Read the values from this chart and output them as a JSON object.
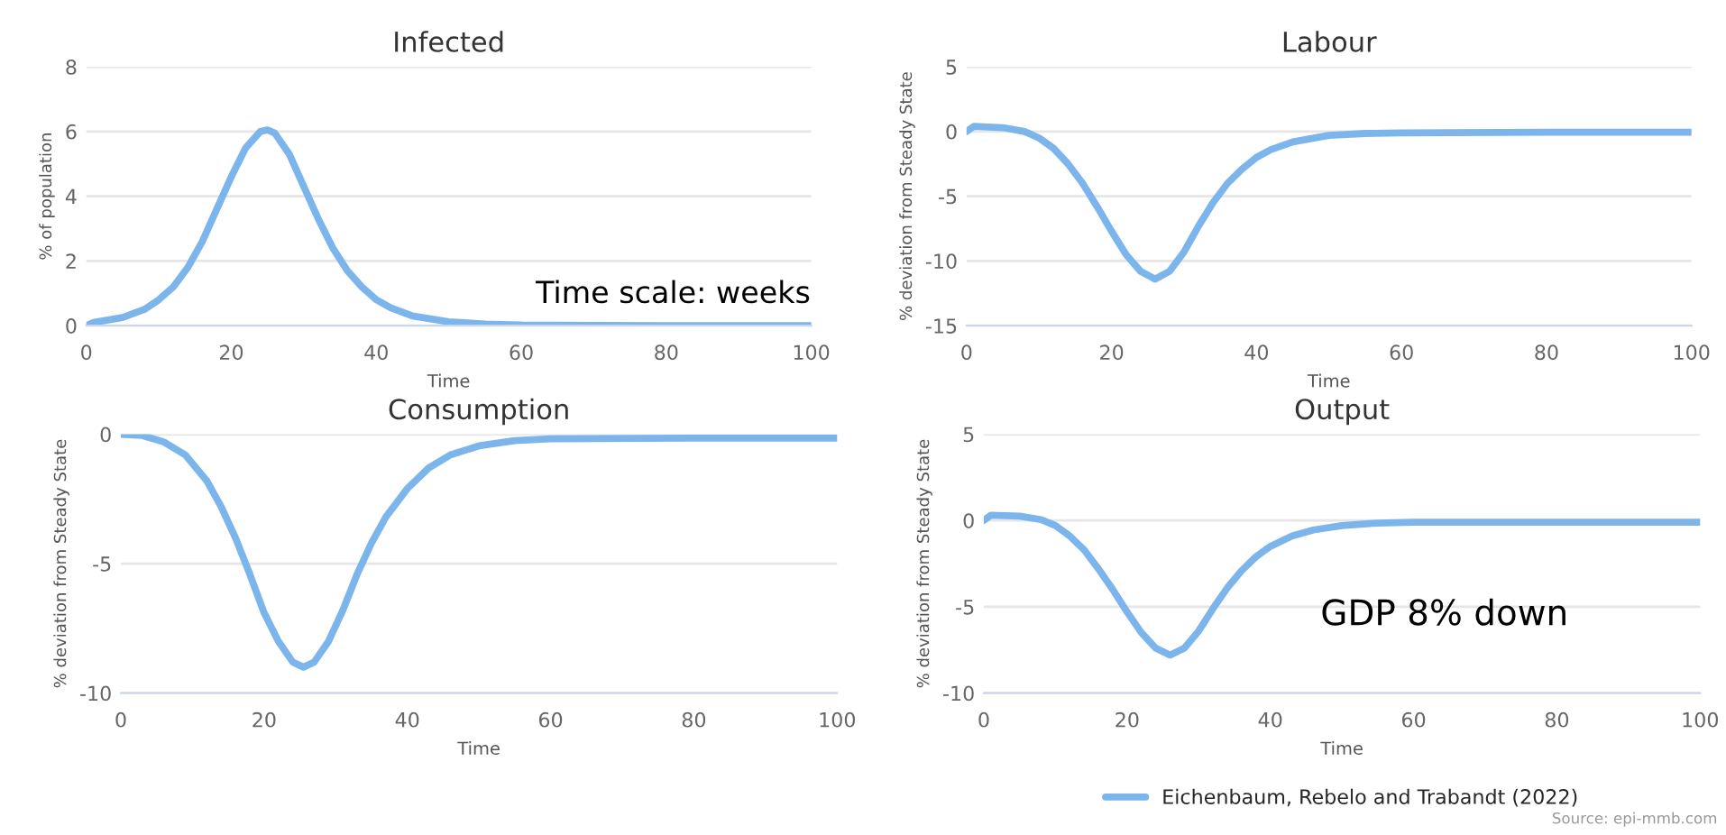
{
  "chart_data": [
    {
      "type": "line",
      "title": "Infected",
      "xlabel": "Time",
      "ylabel": "% of population",
      "xlim": [
        0,
        100
      ],
      "xticks": [
        0,
        20,
        40,
        60,
        80,
        100
      ],
      "ylim": [
        0,
        8
      ],
      "yticks": [
        0,
        2,
        4,
        6,
        8
      ],
      "grid": "y",
      "annotations": [
        "Time scale: weeks"
      ],
      "series": [
        {
          "color": "#7cb5ec",
          "x": [
            0,
            1,
            5,
            8,
            10,
            12,
            14,
            16,
            18,
            20,
            22,
            24,
            25,
            26,
            28,
            30,
            32,
            34,
            36,
            38,
            40,
            42,
            45,
            50,
            55,
            60,
            70,
            80,
            100
          ],
          "values": [
            0,
            0.1,
            0.25,
            0.5,
            0.8,
            1.2,
            1.8,
            2.6,
            3.6,
            4.6,
            5.5,
            6.0,
            6.05,
            5.95,
            5.3,
            4.3,
            3.3,
            2.4,
            1.7,
            1.2,
            0.8,
            0.55,
            0.3,
            0.12,
            0.05,
            0.02,
            0.01,
            0,
            0
          ]
        }
      ]
    },
    {
      "type": "line",
      "title": "Labour",
      "xlabel": "Time",
      "ylabel": "% deviation from Steady State",
      "xlim": [
        0,
        100
      ],
      "xticks": [
        0,
        20,
        40,
        60,
        80,
        100
      ],
      "ylim": [
        -15,
        5
      ],
      "yticks": [
        -15,
        -10,
        -5,
        0,
        5
      ],
      "grid": "y",
      "series": [
        {
          "color": "#7cb5ec",
          "x": [
            0,
            1,
            5,
            8,
            10,
            12,
            14,
            16,
            18,
            20,
            22,
            24,
            26,
            28,
            30,
            32,
            34,
            36,
            38,
            40,
            42,
            45,
            50,
            55,
            60,
            80,
            100
          ],
          "values": [
            0,
            0.4,
            0.3,
            0,
            -0.5,
            -1.3,
            -2.5,
            -4,
            -5.8,
            -7.7,
            -9.5,
            -10.8,
            -11.4,
            -10.8,
            -9.3,
            -7.3,
            -5.5,
            -4,
            -2.9,
            -2,
            -1.4,
            -0.8,
            -0.3,
            -0.15,
            -0.1,
            -0.05,
            -0.05
          ]
        }
      ]
    },
    {
      "type": "line",
      "title": "Consumption",
      "xlabel": "Time",
      "ylabel": "% deviation from Steady State",
      "xlim": [
        0,
        100
      ],
      "xticks": [
        0,
        20,
        40,
        60,
        80,
        100
      ],
      "ylim": [
        -10,
        0
      ],
      "yticks": [
        -10,
        -5,
        0
      ],
      "grid": "y",
      "series": [
        {
          "color": "#7cb5ec",
          "x": [
            0,
            3,
            6,
            9,
            12,
            14,
            16,
            18,
            20,
            22,
            24,
            25.5,
            27,
            29,
            31,
            33,
            35,
            37,
            40,
            43,
            46,
            50,
            55,
            60,
            80,
            100
          ],
          "values": [
            0,
            -0.05,
            -0.3,
            -0.8,
            -1.8,
            -2.8,
            -4,
            -5.4,
            -6.9,
            -8,
            -8.8,
            -9,
            -8.8,
            -8,
            -6.8,
            -5.4,
            -4.2,
            -3.2,
            -2.1,
            -1.3,
            -0.8,
            -0.45,
            -0.25,
            -0.18,
            -0.15,
            -0.15
          ]
        }
      ]
    },
    {
      "type": "line",
      "title": "Output",
      "xlabel": "Time",
      "ylabel": "% deviation from Steady State",
      "xlim": [
        0,
        100
      ],
      "xticks": [
        0,
        20,
        40,
        60,
        80,
        100
      ],
      "ylim": [
        -10,
        5
      ],
      "yticks": [
        -10,
        -5,
        0,
        5
      ],
      "grid": "y",
      "legend": "bottom",
      "annotations": [
        "GDP 8% down",
        "Source: epi-mmb.com"
      ],
      "series": [
        {
          "name": "Eichenbaum, Rebelo and Trabandt (2022)",
          "color": "#7cb5ec",
          "x": [
            0,
            1,
            5,
            8,
            10,
            12,
            14,
            16,
            18,
            20,
            22,
            24,
            26,
            28,
            30,
            32,
            34,
            36,
            38,
            40,
            43,
            46,
            50,
            55,
            60,
            100
          ],
          "values": [
            0,
            0.3,
            0.25,
            0.05,
            -0.3,
            -0.9,
            -1.7,
            -2.8,
            -4,
            -5.3,
            -6.5,
            -7.4,
            -7.8,
            -7.4,
            -6.4,
            -5.1,
            -3.9,
            -2.9,
            -2.1,
            -1.5,
            -0.9,
            -0.55,
            -0.3,
            -0.15,
            -0.1,
            -0.1
          ]
        }
      ]
    }
  ]
}
